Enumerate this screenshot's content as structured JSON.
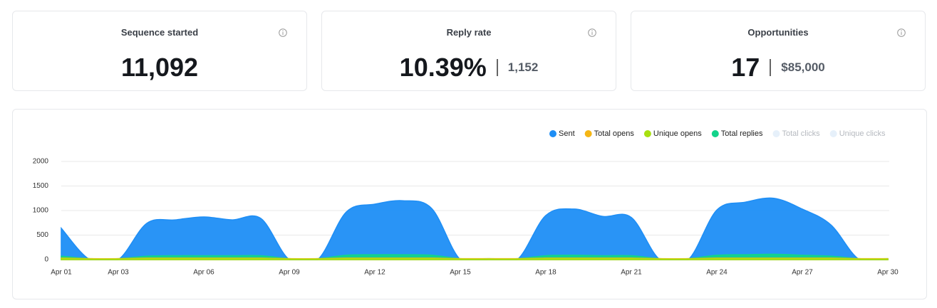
{
  "cards": [
    {
      "title": "Sequence started",
      "value": "11,092"
    },
    {
      "title": "Reply rate",
      "value": "10.39%",
      "secondary": "1,152"
    },
    {
      "title": "Opportunities",
      "value": "17",
      "secondary": "$85,000"
    }
  ],
  "chart_data": {
    "type": "area",
    "categories": [
      "Apr 01",
      null,
      "Apr 03",
      null,
      null,
      "Apr 06",
      null,
      null,
      "Apr 09",
      null,
      null,
      "Apr 12",
      null,
      null,
      "Apr 15",
      null,
      null,
      "Apr 18",
      null,
      null,
      "Apr 21",
      null,
      null,
      "Apr 24",
      null,
      null,
      "Apr 27",
      null,
      null,
      "Apr 30"
    ],
    "series": [
      {
        "name": "Sent",
        "color": "#1e8ef5",
        "values": [
          640,
          0,
          0,
          740,
          810,
          870,
          810,
          840,
          0,
          0,
          970,
          1130,
          1200,
          1040,
          0,
          0,
          0,
          900,
          1030,
          880,
          860,
          0,
          0,
          1010,
          1170,
          1250,
          1030,
          710,
          0,
          0
        ]
      },
      {
        "name": "Total opens",
        "color": "#f5b615",
        "values": [
          30,
          20,
          20,
          30,
          30,
          30,
          30,
          30,
          20,
          20,
          30,
          30,
          30,
          30,
          20,
          20,
          20,
          30,
          30,
          30,
          30,
          20,
          20,
          30,
          30,
          30,
          30,
          30,
          20,
          20
        ]
      },
      {
        "name": "Unique opens",
        "color": "#a8e010",
        "values": [
          20,
          10,
          10,
          20,
          20,
          20,
          20,
          20,
          10,
          10,
          20,
          20,
          20,
          20,
          10,
          10,
          10,
          20,
          20,
          20,
          20,
          10,
          10,
          20,
          20,
          20,
          20,
          20,
          10,
          10
        ]
      },
      {
        "name": "Total replies",
        "color": "#12d38a",
        "values": [
          70,
          20,
          20,
          70,
          80,
          80,
          80,
          80,
          20,
          20,
          90,
          100,
          100,
          90,
          20,
          20,
          20,
          80,
          90,
          80,
          80,
          20,
          20,
          90,
          100,
          110,
          90,
          70,
          20,
          20
        ]
      },
      {
        "name": "Total clicks",
        "color": "#e6f0fa",
        "disabled": true,
        "values": [
          0,
          0,
          0,
          0,
          0,
          0,
          0,
          0,
          0,
          0,
          0,
          0,
          0,
          0,
          0,
          0,
          0,
          0,
          0,
          0,
          0,
          0,
          0,
          0,
          0,
          0,
          0,
          0,
          0,
          0
        ]
      },
      {
        "name": "Unique clicks",
        "color": "#e6f0fa",
        "disabled": true,
        "values": [
          0,
          0,
          0,
          0,
          0,
          0,
          0,
          0,
          0,
          0,
          0,
          0,
          0,
          0,
          0,
          0,
          0,
          0,
          0,
          0,
          0,
          0,
          0,
          0,
          0,
          0,
          0,
          0,
          0,
          0
        ]
      }
    ],
    "ylim": [
      0,
      2000
    ],
    "yticks": [
      0,
      500,
      1000,
      1500,
      2000
    ],
    "grid": true,
    "legend": "top-right"
  }
}
